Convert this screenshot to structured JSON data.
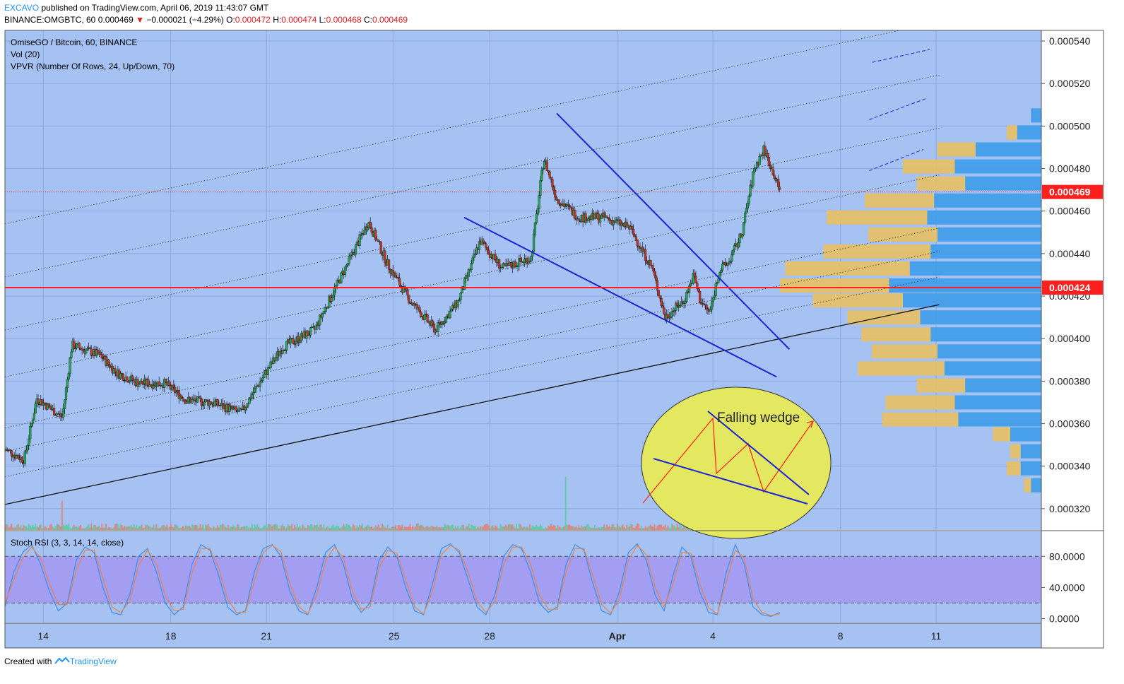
{
  "header": {
    "author": "EXCAVO",
    "published_text": "published on TradingView.com, April 06, 2019 11:43:07 GMT",
    "symbol": "BINANCE:OMGBTC, 60",
    "last": "0.000469",
    "change_arrow": "▼",
    "change": "−0.000021 (−4.29%)",
    "o_label": "O:",
    "o": "0.000472",
    "h_label": "H:",
    "h": "0.000474",
    "l_label": "L:",
    "l": "0.000468",
    "c_label": "C:",
    "c": "0.000469"
  },
  "legend": {
    "title": "OmiseGO / Bitcoin, 60, BINANCE",
    "vol": "Vol (20)",
    "vpvr": "VPVR (Number Of Rows, 24, Up/Down, 70)"
  },
  "rsi_legend": "Stoch RSI (3, 3, 14, 14, close)",
  "annotation": "Falling wedge",
  "footer": {
    "created_with": "Created with",
    "brand": "TradingView"
  },
  "colors": {
    "background": "#a6c2f2",
    "rsi_band": "#a39ef2",
    "candle_up": "#26a65b",
    "candle_down": "#c0392b",
    "wedge_lines": "#1a24d4",
    "hline": "#ff1f1f",
    "annotation_fill": "#e4e860",
    "vpvr_up": "#3d9ce8",
    "vpvr_down": "#e8c064"
  },
  "chart_data": {
    "type": "candlestick",
    "symbol": "OMGBTC",
    "interval": "60",
    "price_axis": {
      "ticks": [
        "0.000540",
        "0.000520",
        "0.000500",
        "0.000480",
        "0.000460",
        "0.000440",
        "0.000420",
        "0.000400",
        "0.000380",
        "0.000360",
        "0.000340",
        "0.000320"
      ],
      "range": [
        0.00031,
        0.000545
      ]
    },
    "price_labels": [
      {
        "label": "0.000469",
        "value": 0.000469
      },
      {
        "label": "0.000424",
        "value": 0.000424
      }
    ],
    "time_axis": {
      "ticks": [
        "14",
        "18",
        "21",
        "25",
        "28",
        "Apr",
        "4",
        "8",
        "11"
      ],
      "tick_days": [
        14,
        18,
        21,
        25,
        28,
        32,
        35,
        39,
        42
      ],
      "range_days": [
        12.8,
        45.3
      ]
    },
    "close_path": [
      [
        12.8,
        0.000348
      ],
      [
        13.4,
        0.000343
      ],
      [
        13.8,
        0.000372
      ],
      [
        14.6,
        0.000363
      ],
      [
        14.9,
        0.000397
      ],
      [
        15.8,
        0.000392
      ],
      [
        16.3,
        0.000384
      ],
      [
        17.0,
        0.000379
      ],
      [
        17.8,
        0.000379
      ],
      [
        18.5,
        0.000371
      ],
      [
        19.3,
        0.00037
      ],
      [
        20.2,
        0.000365
      ],
      [
        20.6,
        0.000375
      ],
      [
        21.5,
        0.000396
      ],
      [
        22.5,
        0.000404
      ],
      [
        23.5,
        0.000434
      ],
      [
        24.2,
        0.000455
      ],
      [
        24.8,
        0.000435
      ],
      [
        25.5,
        0.000418
      ],
      [
        26.3,
        0.000404
      ],
      [
        27.0,
        0.000417
      ],
      [
        27.7,
        0.000446
      ],
      [
        28.4,
        0.000433
      ],
      [
        29.3,
        0.000438
      ],
      [
        29.7,
        0.000485
      ],
      [
        30.1,
        0.000466
      ],
      [
        30.8,
        0.000457
      ],
      [
        31.6,
        0.000457
      ],
      [
        32.4,
        0.000452
      ],
      [
        33.1,
        0.000433
      ],
      [
        33.5,
        0.00041
      ],
      [
        34.1,
        0.000418
      ],
      [
        34.4,
        0.00043
      ],
      [
        34.6,
        0.000418
      ],
      [
        34.9,
        0.000412
      ],
      [
        35.2,
        0.000432
      ],
      [
        35.5,
        0.000436
      ],
      [
        35.9,
        0.000449
      ],
      [
        36.3,
        0.00048
      ],
      [
        36.6,
        0.000489
      ],
      [
        36.9,
        0.000478
      ],
      [
        37.1,
        0.000469
      ]
    ],
    "volume_spikes": [
      [
        14.6,
        0.55
      ],
      [
        30.4,
        1.0
      ],
      [
        34.4,
        0.45
      ],
      [
        36.1,
        0.35
      ]
    ],
    "vpvr": {
      "rows": [
        {
          "price": 0.000505,
          "up": 0.06,
          "down": 0.0
        },
        {
          "price": 0.000497,
          "up": 0.14,
          "down": 0.06
        },
        {
          "price": 0.000489,
          "up": 0.38,
          "down": 0.22
        },
        {
          "price": 0.000481,
          "up": 0.5,
          "down": 0.3
        },
        {
          "price": 0.000473,
          "up": 0.44,
          "down": 0.28
        },
        {
          "price": 0.000465,
          "up": 0.62,
          "down": 0.4
        },
        {
          "price": 0.000457,
          "up": 0.66,
          "down": 0.58
        },
        {
          "price": 0.000449,
          "up": 0.6,
          "down": 0.4
        },
        {
          "price": 0.000441,
          "up": 0.64,
          "down": 0.62
        },
        {
          "price": 0.000433,
          "up": 0.76,
          "down": 0.72
        },
        {
          "price": 0.000425,
          "up": 0.88,
          "down": 0.63
        },
        {
          "price": 0.000418,
          "up": 0.8,
          "down": 0.52
        },
        {
          "price": 0.00041,
          "up": 0.7,
          "down": 0.42
        },
        {
          "price": 0.000402,
          "up": 0.64,
          "down": 0.4
        },
        {
          "price": 0.000394,
          "up": 0.6,
          "down": 0.38
        },
        {
          "price": 0.000386,
          "up": 0.56,
          "down": 0.5
        },
        {
          "price": 0.000378,
          "up": 0.44,
          "down": 0.28
        },
        {
          "price": 0.00037,
          "up": 0.5,
          "down": 0.4
        },
        {
          "price": 0.000362,
          "up": 0.48,
          "down": 0.44
        },
        {
          "price": 0.000355,
          "up": 0.18,
          "down": 0.1
        },
        {
          "price": 0.000347,
          "up": 0.12,
          "down": 0.06
        },
        {
          "price": 0.000339,
          "up": 0.12,
          "down": 0.08
        },
        {
          "price": 0.000331,
          "up": 0.06,
          "down": 0.04
        }
      ]
    },
    "drawings": {
      "support_line": [
        [
          12.8,
          0.000322
        ],
        [
          42.1,
          0.000416
        ]
      ],
      "channel_lines": [
        {
          "from": [
            12.8,
            0.000335
          ],
          "to": [
            42.1,
            0.000429
          ]
        },
        {
          "from": [
            12.8,
            0.000347
          ],
          "to": [
            42.1,
            0.000441
          ]
        },
        {
          "from": [
            12.8,
            0.000358
          ],
          "to": [
            42.1,
            0.000452
          ]
        },
        {
          "from": [
            12.8,
            0.000382
          ],
          "to": [
            42.1,
            0.000477
          ]
        },
        {
          "from": [
            12.8,
            0.000404
          ],
          "to": [
            42.1,
            0.000499
          ]
        },
        {
          "from": [
            12.8,
            0.000429
          ],
          "to": [
            42.1,
            0.000524
          ]
        },
        {
          "from": [
            12.8,
            0.000454
          ],
          "to": [
            42.1,
            0.000549
          ]
        }
      ],
      "wedge_upper": [
        [
          30.1,
          0.000506
        ],
        [
          37.4,
          0.000395
        ]
      ],
      "wedge_lower": [
        [
          27.2,
          0.000457
        ],
        [
          37.0,
          0.000382
        ]
      ],
      "hlines": [
        0.000424,
        0.000469
      ]
    },
    "stoch_rsi": {
      "ticks": [
        "80.0000",
        "40.0000",
        "0.0000"
      ],
      "range": [
        -5,
        112
      ],
      "band": [
        20,
        80
      ],
      "series": [
        {
          "color": "#3a8ef0",
          "values": [
            15,
            60,
            85,
            95,
            70,
            35,
            10,
            20,
            75,
            92,
            85,
            40,
            8,
            5,
            30,
            80,
            90,
            60,
            20,
            5,
            15,
            70,
            95,
            88,
            55,
            15,
            5,
            10,
            60,
            90,
            95,
            80,
            35,
            10,
            5,
            40,
            85,
            95,
            70,
            25,
            8,
            20,
            75,
            92,
            80,
            40,
            10,
            5,
            45,
            90,
            96,
            85,
            50,
            15,
            5,
            30,
            80,
            95,
            90,
            60,
            20,
            8,
            15,
            70,
            95,
            88,
            45,
            10,
            5,
            35,
            85,
            96,
            75,
            30,
            10,
            55,
            92,
            80,
            35,
            8,
            5,
            60,
            95,
            70,
            15,
            5,
            3,
            8
          ]
        },
        {
          "color": "#e8824a",
          "values": [
            20,
            50,
            78,
            92,
            78,
            45,
            18,
            18,
            62,
            88,
            88,
            52,
            15,
            8,
            22,
            68,
            88,
            70,
            30,
            10,
            12,
            58,
            90,
            90,
            65,
            25,
            8,
            8,
            48,
            85,
            94,
            86,
            45,
            15,
            6,
            30,
            75,
            92,
            78,
            35,
            12,
            15,
            65,
            88,
            84,
            50,
            15,
            6,
            35,
            82,
            94,
            88,
            60,
            22,
            8,
            22,
            70,
            92,
            92,
            70,
            30,
            12,
            12,
            60,
            90,
            90,
            55,
            18,
            7,
            25,
            75,
            94,
            82,
            40,
            15,
            45,
            85,
            84,
            45,
            14,
            6,
            48,
            88,
            78,
            25,
            8,
            4,
            6
          ]
        }
      ]
    }
  }
}
